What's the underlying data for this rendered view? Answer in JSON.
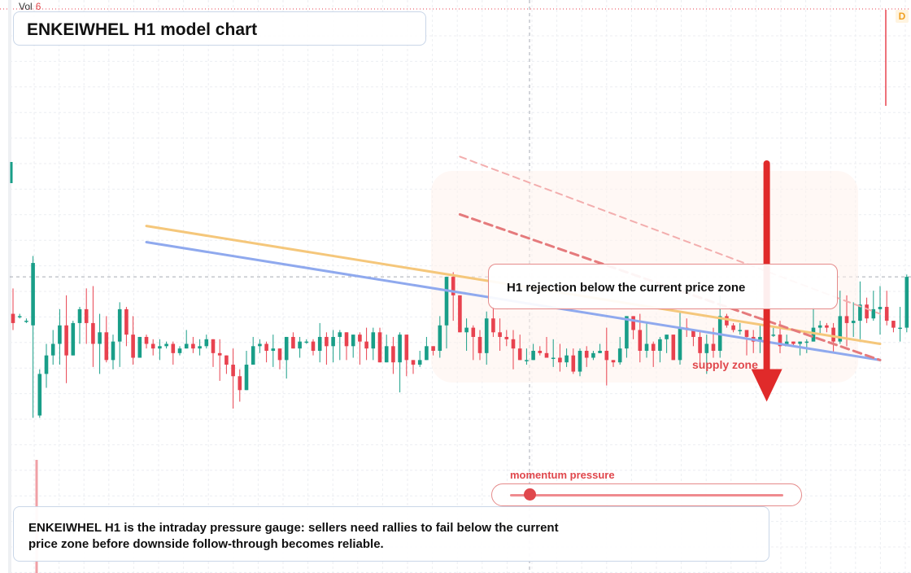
{
  "title": "ENKEIWHEL H1 model chart",
  "volume": {
    "label": "Vol",
    "value": "6"
  },
  "interval_badge": "D",
  "callout": "H1 rejection below the current price zone",
  "zone_label": "supply zone",
  "gauge": {
    "label": "momentum pressure",
    "level": 0.07
  },
  "footer": "ENKEIWHEL H1 is the intraday pressure gauge: sellers need rallies to fail below the current price zone before downside follow-through becomes reliable.",
  "colors": {
    "up": "#199e88",
    "down": "#e8424f",
    "trend_blue": "#8fa9ee",
    "trend_orange": "#f5c77b",
    "accent": "#e0474c"
  },
  "chart_data": {
    "type": "candlestick",
    "ylim": [
      0,
      100
    ],
    "current_price": 57,
    "candles": [
      [
        41,
        37,
        52,
        34
      ],
      [
        40,
        40,
        41,
        39
      ],
      [
        38,
        38,
        39,
        37
      ],
      [
        36,
        63,
        66,
        -4
      ],
      [
        -3,
        15,
        17,
        -4
      ],
      [
        15,
        23,
        28,
        9
      ],
      [
        23,
        28,
        34,
        19
      ],
      [
        28,
        36,
        43,
        19
      ],
      [
        36,
        23,
        49,
        11
      ],
      [
        23,
        37,
        38,
        27
      ],
      [
        37,
        43,
        44,
        28
      ],
      [
        43,
        37,
        52,
        28
      ],
      [
        37,
        28,
        53,
        18
      ],
      [
        28,
        33,
        41,
        15
      ],
      [
        33,
        21,
        40,
        20
      ],
      [
        21,
        29,
        32,
        17
      ],
      [
        29,
        43,
        46,
        18
      ],
      [
        43,
        32,
        44,
        27
      ],
      [
        32,
        22,
        40,
        19
      ],
      [
        22,
        31,
        31,
        23
      ],
      [
        31,
        28,
        32,
        26
      ],
      [
        28,
        26,
        30,
        23
      ],
      [
        26,
        27,
        30,
        21
      ],
      [
        27,
        28,
        29,
        26
      ],
      [
        28,
        24,
        29,
        19
      ],
      [
        24,
        26,
        27,
        23
      ],
      [
        26,
        28,
        34,
        26
      ],
      [
        28,
        26,
        31,
        24
      ],
      [
        26,
        27,
        30,
        23
      ],
      [
        27,
        30,
        32,
        26
      ],
      [
        30,
        24,
        29,
        18
      ],
      [
        24,
        23,
        30,
        12
      ],
      [
        23,
        19,
        23,
        15
      ],
      [
        19,
        14,
        26,
        0
      ],
      [
        14,
        8,
        17,
        3
      ],
      [
        8,
        19,
        25,
        14
      ],
      [
        19,
        27,
        31,
        24
      ],
      [
        27,
        28,
        30,
        24
      ],
      [
        28,
        25,
        29,
        20
      ],
      [
        25,
        26,
        32,
        18
      ],
      [
        26,
        21,
        23,
        17
      ],
      [
        21,
        31,
        31,
        13
      ],
      [
        31,
        26,
        33,
        26
      ],
      [
        26,
        29,
        31,
        22
      ],
      [
        29,
        29,
        30,
        28
      ],
      [
        29,
        25,
        30,
        23
      ],
      [
        25,
        31,
        37,
        20
      ],
      [
        31,
        27,
        33,
        19
      ],
      [
        27,
        31,
        34,
        20
      ],
      [
        31,
        33,
        34,
        21
      ],
      [
        33,
        27,
        33,
        21
      ],
      [
        27,
        32,
        32,
        22
      ],
      [
        32,
        29,
        33,
        19
      ],
      [
        29,
        26,
        35,
        21
      ],
      [
        26,
        33,
        35,
        21
      ],
      [
        33,
        20,
        35,
        20
      ],
      [
        20,
        27,
        32,
        23
      ],
      [
        27,
        20,
        31,
        15
      ],
      [
        20,
        32,
        33,
        7
      ],
      [
        32,
        21,
        30,
        14
      ],
      [
        21,
        19,
        21,
        15
      ],
      [
        19,
        21,
        25,
        18
      ],
      [
        21,
        27,
        31,
        22
      ],
      [
        27,
        25,
        26,
        23
      ],
      [
        25,
        36,
        40,
        22
      ],
      [
        36,
        57,
        57,
        26
      ],
      [
        57,
        49,
        59,
        38
      ],
      [
        49,
        33,
        39,
        33
      ],
      [
        33,
        35,
        39,
        25
      ],
      [
        35,
        31,
        36,
        21
      ],
      [
        31,
        24,
        34,
        21
      ],
      [
        24,
        39,
        42,
        19
      ],
      [
        39,
        33,
        44,
        31
      ],
      [
        33,
        31,
        39,
        25
      ],
      [
        31,
        30,
        34,
        27
      ],
      [
        30,
        26,
        34,
        17
      ],
      [
        26,
        21,
        32,
        21
      ],
      [
        21,
        21,
        26,
        19
      ],
      [
        21,
        25,
        28,
        23
      ],
      [
        25,
        24,
        27,
        23
      ],
      [
        24,
        22,
        31,
        22
      ],
      [
        22,
        22,
        30,
        18
      ],
      [
        22,
        20,
        28,
        16
      ],
      [
        20,
        23,
        26,
        18
      ],
      [
        23,
        16,
        26,
        15
      ],
      [
        16,
        25,
        26,
        14
      ],
      [
        25,
        22,
        27,
        18
      ],
      [
        22,
        24,
        25,
        21
      ],
      [
        24,
        25,
        28,
        24
      ],
      [
        25,
        21,
        35,
        10
      ],
      [
        21,
        20,
        21,
        18
      ],
      [
        20,
        26,
        31,
        19
      ],
      [
        26,
        40,
        40,
        22
      ],
      [
        40,
        34,
        40,
        30
      ],
      [
        34,
        25,
        41,
        20
      ],
      [
        25,
        28,
        37,
        22
      ],
      [
        28,
        25,
        29,
        18
      ],
      [
        25,
        30,
        31,
        20
      ],
      [
        30,
        32,
        30,
        24
      ],
      [
        32,
        21,
        31,
        24
      ],
      [
        21,
        35,
        42,
        19
      ],
      [
        35,
        34,
        39,
        31
      ],
      [
        34,
        31,
        33,
        27
      ],
      [
        31,
        24,
        34,
        19
      ],
      [
        24,
        28,
        32,
        15
      ],
      [
        28,
        25,
        35,
        22
      ],
      [
        25,
        40,
        49,
        22
      ],
      [
        40,
        36,
        41,
        35
      ],
      [
        36,
        34,
        37,
        33
      ],
      [
        34,
        34,
        37,
        32
      ],
      [
        34,
        31,
        31,
        23
      ],
      [
        31,
        29,
        34,
        24
      ],
      [
        29,
        31,
        36,
        24
      ],
      [
        31,
        32,
        33,
        32
      ],
      [
        32,
        32,
        35,
        31
      ],
      [
        32,
        27,
        38,
        24
      ],
      [
        27,
        29,
        32,
        29
      ],
      [
        29,
        28,
        29,
        27
      ],
      [
        28,
        29,
        29,
        23
      ],
      [
        29,
        29,
        30,
        24
      ],
      [
        29,
        35,
        44,
        32
      ],
      [
        35,
        36,
        38,
        32
      ],
      [
        36,
        35,
        37,
        33
      ],
      [
        35,
        29,
        37,
        24
      ],
      [
        29,
        40,
        51,
        28
      ],
      [
        40,
        37,
        49,
        27
      ],
      [
        37,
        38,
        46,
        31
      ],
      [
        38,
        45,
        55,
        30
      ],
      [
        45,
        39,
        48,
        37
      ],
      [
        39,
        43,
        51,
        38
      ],
      [
        43,
        44,
        53,
        32
      ],
      [
        44,
        38,
        51,
        36
      ],
      [
        38,
        35,
        38,
        33
      ],
      [
        35,
        35,
        44,
        29
      ],
      [
        35,
        57,
        58,
        33
      ],
      [
        57,
        39,
        48,
        31
      ],
      [
        39,
        39,
        41,
        36
      ],
      [
        39,
        44,
        45,
        31
      ],
      [
        44,
        40,
        46,
        35
      ],
      [
        40,
        37,
        45,
        31
      ],
      [
        37,
        33,
        37,
        32
      ]
    ],
    "trendlines": [
      {
        "color": "orange",
        "from": [
          20,
          79
        ],
        "to": [
          130,
          28
        ]
      },
      {
        "color": "blue",
        "from": [
          20,
          72
        ],
        "to": [
          130,
          21
        ]
      },
      {
        "color": "red-dashed",
        "from": [
          67,
          84
        ],
        "to": [
          130,
          21
        ]
      },
      {
        "color": "pink-dashed",
        "from": [
          67,
          109
        ],
        "to": [
          130,
          41
        ]
      }
    ],
    "arrow": {
      "x": 113,
      "from": 106,
      "to": 3
    }
  }
}
